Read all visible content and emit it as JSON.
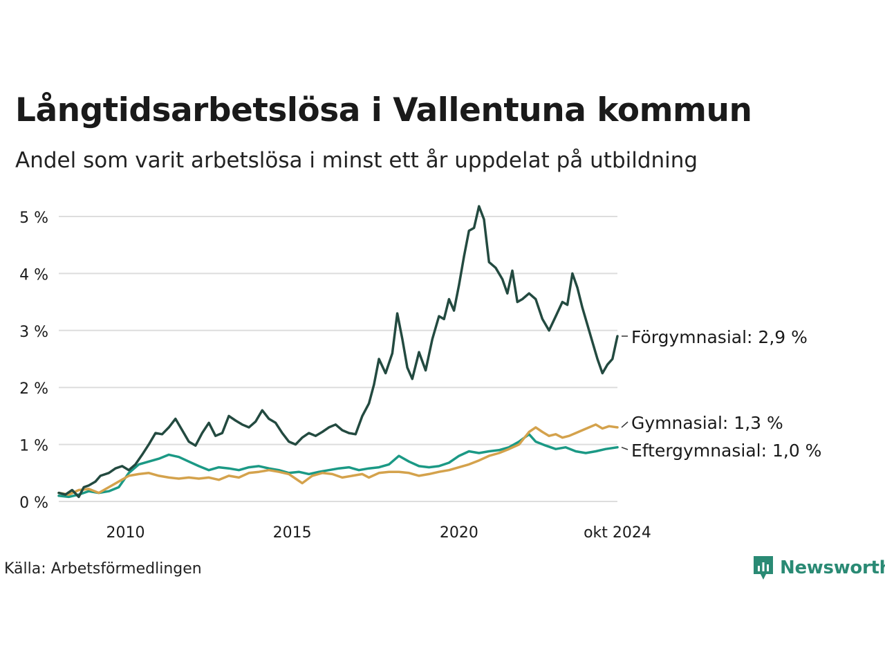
{
  "header": {
    "title": "Långtidsarbetslösa i Vallentuna kommun",
    "subtitle": "Andel som varit arbetslösa i minst ett år uppdelat på utbildning"
  },
  "footer": {
    "source": "Källa: Arbetsförmedlingen",
    "brand": "Newsworthy"
  },
  "colors": {
    "forgymnasial": "#234a40",
    "gymnasial": "#d4a24c",
    "eftergymnasial": "#1b9985",
    "grid": "#dddddd",
    "brand": "#2a8a74"
  },
  "chart_data": {
    "type": "line",
    "title": "Långtidsarbetslösa i Vallentuna kommun",
    "xlabel": "",
    "ylabel": "",
    "xlim": [
      2008.0,
      2024.75
    ],
    "ylim": [
      0,
      5.2
    ],
    "y_ticks": [
      0,
      1,
      2,
      3,
      4,
      5
    ],
    "y_tick_labels": [
      "0 %",
      "1 %",
      "2 %",
      "3 %",
      "4 %",
      "5 %"
    ],
    "x_ticks": [
      2010,
      2015,
      2020,
      2024.75
    ],
    "x_tick_labels": [
      "2010",
      "2015",
      "2020",
      "okt 2024"
    ],
    "grid": true,
    "series": [
      {
        "name": "Förgymnasial",
        "end_label": "Förgymnasial: 2,9 %",
        "color_key": "forgymnasial",
        "points": [
          [
            2008.0,
            0.15
          ],
          [
            2008.2,
            0.12
          ],
          [
            2008.4,
            0.2
          ],
          [
            2008.6,
            0.08
          ],
          [
            2008.75,
            0.25
          ],
          [
            2008.9,
            0.28
          ],
          [
            2009.1,
            0.35
          ],
          [
            2009.25,
            0.45
          ],
          [
            2009.5,
            0.5
          ],
          [
            2009.7,
            0.58
          ],
          [
            2009.9,
            0.62
          ],
          [
            2010.1,
            0.55
          ],
          [
            2010.3,
            0.65
          ],
          [
            2010.5,
            0.82
          ],
          [
            2010.7,
            1.0
          ],
          [
            2010.9,
            1.2
          ],
          [
            2011.1,
            1.18
          ],
          [
            2011.3,
            1.3
          ],
          [
            2011.5,
            1.45
          ],
          [
            2011.7,
            1.25
          ],
          [
            2011.9,
            1.05
          ],
          [
            2012.1,
            0.98
          ],
          [
            2012.3,
            1.2
          ],
          [
            2012.5,
            1.38
          ],
          [
            2012.7,
            1.15
          ],
          [
            2012.9,
            1.2
          ],
          [
            2013.1,
            1.5
          ],
          [
            2013.3,
            1.42
          ],
          [
            2013.5,
            1.35
          ],
          [
            2013.7,
            1.3
          ],
          [
            2013.9,
            1.4
          ],
          [
            2014.1,
            1.6
          ],
          [
            2014.3,
            1.45
          ],
          [
            2014.5,
            1.38
          ],
          [
            2014.7,
            1.2
          ],
          [
            2014.9,
            1.05
          ],
          [
            2015.1,
            1.0
          ],
          [
            2015.3,
            1.12
          ],
          [
            2015.5,
            1.2
          ],
          [
            2015.7,
            1.15
          ],
          [
            2015.9,
            1.22
          ],
          [
            2016.1,
            1.3
          ],
          [
            2016.3,
            1.35
          ],
          [
            2016.5,
            1.25
          ],
          [
            2016.7,
            1.2
          ],
          [
            2016.9,
            1.18
          ],
          [
            2017.1,
            1.5
          ],
          [
            2017.3,
            1.72
          ],
          [
            2017.45,
            2.05
          ],
          [
            2017.6,
            2.5
          ],
          [
            2017.8,
            2.25
          ],
          [
            2018.0,
            2.6
          ],
          [
            2018.15,
            3.3
          ],
          [
            2018.3,
            2.85
          ],
          [
            2018.45,
            2.35
          ],
          [
            2018.6,
            2.15
          ],
          [
            2018.8,
            2.62
          ],
          [
            2019.0,
            2.3
          ],
          [
            2019.2,
            2.85
          ],
          [
            2019.4,
            3.25
          ],
          [
            2019.55,
            3.2
          ],
          [
            2019.7,
            3.55
          ],
          [
            2019.85,
            3.35
          ],
          [
            2020.0,
            3.8
          ],
          [
            2020.15,
            4.3
          ],
          [
            2020.3,
            4.75
          ],
          [
            2020.45,
            4.8
          ],
          [
            2020.6,
            5.18
          ],
          [
            2020.75,
            4.95
          ],
          [
            2020.9,
            4.2
          ],
          [
            2021.1,
            4.1
          ],
          [
            2021.3,
            3.9
          ],
          [
            2021.45,
            3.65
          ],
          [
            2021.6,
            4.05
          ],
          [
            2021.75,
            3.5
          ],
          [
            2021.9,
            3.55
          ],
          [
            2022.1,
            3.65
          ],
          [
            2022.3,
            3.55
          ],
          [
            2022.5,
            3.2
          ],
          [
            2022.7,
            3.0
          ],
          [
            2022.9,
            3.25
          ],
          [
            2023.1,
            3.5
          ],
          [
            2023.25,
            3.45
          ],
          [
            2023.4,
            4.0
          ],
          [
            2023.55,
            3.75
          ],
          [
            2023.7,
            3.4
          ],
          [
            2023.85,
            3.1
          ],
          [
            2024.0,
            2.8
          ],
          [
            2024.15,
            2.5
          ],
          [
            2024.3,
            2.25
          ],
          [
            2024.45,
            2.4
          ],
          [
            2024.6,
            2.5
          ],
          [
            2024.75,
            2.9
          ]
        ]
      },
      {
        "name": "Gymnasial",
        "end_label": "Gymnasial: 1,3 %",
        "color_key": "gymnasial",
        "points": [
          [
            2008.0,
            0.15
          ],
          [
            2008.3,
            0.12
          ],
          [
            2008.6,
            0.2
          ],
          [
            2008.9,
            0.22
          ],
          [
            2009.2,
            0.15
          ],
          [
            2009.5,
            0.25
          ],
          [
            2009.8,
            0.35
          ],
          [
            2010.1,
            0.45
          ],
          [
            2010.4,
            0.48
          ],
          [
            2010.7,
            0.5
          ],
          [
            2011.0,
            0.45
          ],
          [
            2011.3,
            0.42
          ],
          [
            2011.6,
            0.4
          ],
          [
            2011.9,
            0.42
          ],
          [
            2012.2,
            0.4
          ],
          [
            2012.5,
            0.42
          ],
          [
            2012.8,
            0.38
          ],
          [
            2013.1,
            0.45
          ],
          [
            2013.4,
            0.42
          ],
          [
            2013.7,
            0.5
          ],
          [
            2014.0,
            0.52
          ],
          [
            2014.3,
            0.55
          ],
          [
            2014.6,
            0.52
          ],
          [
            2014.9,
            0.48
          ],
          [
            2015.1,
            0.4
          ],
          [
            2015.3,
            0.32
          ],
          [
            2015.6,
            0.45
          ],
          [
            2015.9,
            0.5
          ],
          [
            2016.2,
            0.48
          ],
          [
            2016.5,
            0.42
          ],
          [
            2016.8,
            0.45
          ],
          [
            2017.1,
            0.48
          ],
          [
            2017.3,
            0.42
          ],
          [
            2017.6,
            0.5
          ],
          [
            2017.9,
            0.52
          ],
          [
            2018.2,
            0.52
          ],
          [
            2018.5,
            0.5
          ],
          [
            2018.8,
            0.45
          ],
          [
            2019.1,
            0.48
          ],
          [
            2019.4,
            0.52
          ],
          [
            2019.7,
            0.55
          ],
          [
            2020.0,
            0.6
          ],
          [
            2020.3,
            0.65
          ],
          [
            2020.6,
            0.72
          ],
          [
            2020.9,
            0.8
          ],
          [
            2021.2,
            0.85
          ],
          [
            2021.5,
            0.92
          ],
          [
            2021.8,
            1.0
          ],
          [
            2022.1,
            1.22
          ],
          [
            2022.3,
            1.3
          ],
          [
            2022.5,
            1.22
          ],
          [
            2022.7,
            1.15
          ],
          [
            2022.9,
            1.18
          ],
          [
            2023.1,
            1.12
          ],
          [
            2023.3,
            1.15
          ],
          [
            2023.5,
            1.2
          ],
          [
            2023.7,
            1.25
          ],
          [
            2023.9,
            1.3
          ],
          [
            2024.1,
            1.35
          ],
          [
            2024.3,
            1.28
          ],
          [
            2024.5,
            1.32
          ],
          [
            2024.75,
            1.3
          ]
        ]
      },
      {
        "name": "Eftergymnasial",
        "end_label": "Eftergymnasial: 1,0 %",
        "color_key": "eftergymnasial",
        "points": [
          [
            2008.0,
            0.1
          ],
          [
            2008.3,
            0.08
          ],
          [
            2008.6,
            0.12
          ],
          [
            2008.9,
            0.18
          ],
          [
            2009.2,
            0.15
          ],
          [
            2009.5,
            0.18
          ],
          [
            2009.8,
            0.25
          ],
          [
            2010.1,
            0.5
          ],
          [
            2010.4,
            0.65
          ],
          [
            2010.7,
            0.7
          ],
          [
            2011.0,
            0.75
          ],
          [
            2011.3,
            0.82
          ],
          [
            2011.6,
            0.78
          ],
          [
            2011.9,
            0.7
          ],
          [
            2012.2,
            0.62
          ],
          [
            2012.5,
            0.55
          ],
          [
            2012.8,
            0.6
          ],
          [
            2013.1,
            0.58
          ],
          [
            2013.4,
            0.55
          ],
          [
            2013.7,
            0.6
          ],
          [
            2014.0,
            0.62
          ],
          [
            2014.3,
            0.58
          ],
          [
            2014.6,
            0.55
          ],
          [
            2014.9,
            0.5
          ],
          [
            2015.2,
            0.52
          ],
          [
            2015.5,
            0.48
          ],
          [
            2015.8,
            0.52
          ],
          [
            2016.1,
            0.55
          ],
          [
            2016.4,
            0.58
          ],
          [
            2016.7,
            0.6
          ],
          [
            2017.0,
            0.55
          ],
          [
            2017.3,
            0.58
          ],
          [
            2017.6,
            0.6
          ],
          [
            2017.9,
            0.65
          ],
          [
            2018.2,
            0.8
          ],
          [
            2018.5,
            0.7
          ],
          [
            2018.8,
            0.62
          ],
          [
            2019.1,
            0.6
          ],
          [
            2019.4,
            0.62
          ],
          [
            2019.7,
            0.68
          ],
          [
            2020.0,
            0.8
          ],
          [
            2020.3,
            0.88
          ],
          [
            2020.6,
            0.85
          ],
          [
            2020.9,
            0.88
          ],
          [
            2021.2,
            0.9
          ],
          [
            2021.5,
            0.95
          ],
          [
            2021.8,
            1.05
          ],
          [
            2022.1,
            1.18
          ],
          [
            2022.3,
            1.05
          ],
          [
            2022.6,
            0.98
          ],
          [
            2022.9,
            0.92
          ],
          [
            2023.2,
            0.95
          ],
          [
            2023.5,
            0.88
          ],
          [
            2023.8,
            0.85
          ],
          [
            2024.1,
            0.88
          ],
          [
            2024.4,
            0.92
          ],
          [
            2024.75,
            0.95
          ]
        ]
      }
    ]
  }
}
